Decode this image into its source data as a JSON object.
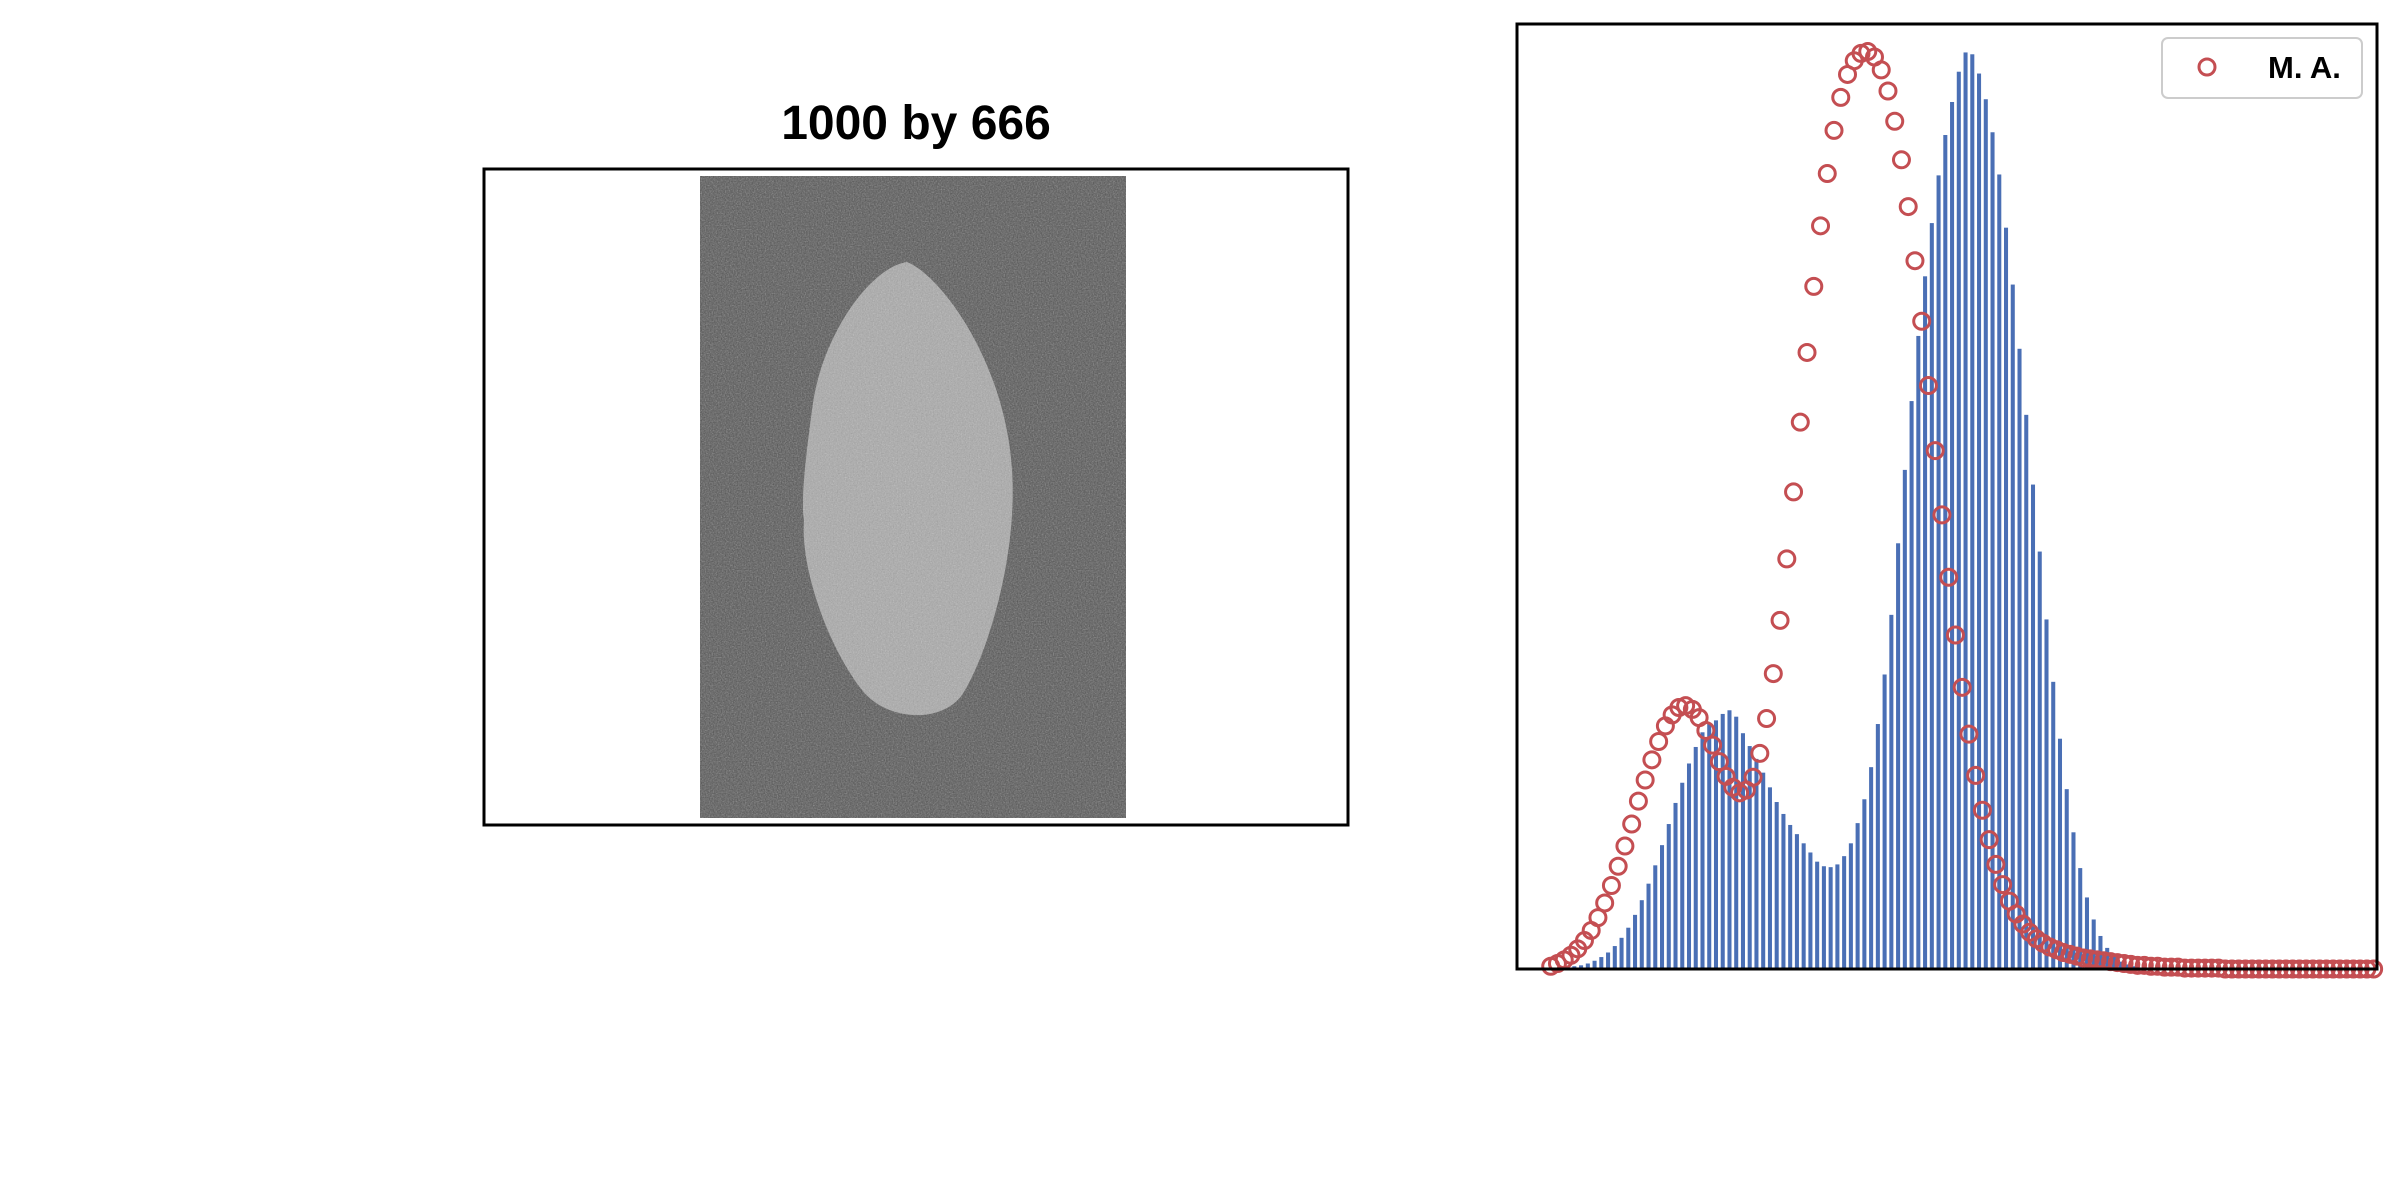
{
  "image_panel": {
    "title": "1000 by 666",
    "colors": {
      "background": "#525252",
      "object": "#a9a9a9",
      "frame": "#000000"
    }
  },
  "chart_data": {
    "type": "bar",
    "title": "",
    "xlabel": "",
    "ylabel": "",
    "xlim": [
      0,
      255
    ],
    "ylim": [
      0,
      1.03
    ],
    "grid": false,
    "axis_ticks": "none",
    "legend": {
      "position": "top-right",
      "entries": [
        "M. A."
      ]
    },
    "bar_color": "#4a6fb5",
    "bar_width": 0.6,
    "series": [
      {
        "type": "bar",
        "x": [
          5,
          7,
          9,
          11,
          13,
          15,
          17,
          19,
          21,
          23,
          25,
          27,
          29,
          31,
          33,
          35,
          37,
          39,
          41,
          43,
          45,
          47,
          49,
          51,
          53,
          55,
          57,
          59,
          61,
          63,
          65,
          67,
          69,
          71,
          73,
          75,
          77,
          79,
          81,
          83,
          85,
          87,
          89,
          91,
          93,
          95,
          97,
          99,
          101,
          103,
          105,
          107,
          109,
          111,
          113,
          115,
          117,
          119,
          121,
          123,
          125,
          127,
          129,
          131,
          133,
          135,
          137,
          139,
          141,
          143,
          145,
          147,
          149,
          151,
          153,
          155,
          157,
          159,
          161,
          163,
          165,
          167,
          169,
          171,
          173,
          175,
          177,
          179,
          181,
          183,
          185,
          187,
          189,
          191,
          193,
          195,
          197,
          199,
          201,
          203,
          205,
          207,
          209,
          211,
          213,
          215,
          217,
          219,
          221,
          223,
          225,
          227,
          229,
          231,
          233,
          235,
          237,
          239,
          241,
          243,
          245,
          247,
          249,
          251,
          253
        ],
        "values": [
          0.0,
          0.0,
          0.0,
          0.001,
          0.001,
          0.002,
          0.003,
          0.004,
          0.006,
          0.009,
          0.013,
          0.018,
          0.025,
          0.034,
          0.045,
          0.059,
          0.075,
          0.093,
          0.113,
          0.135,
          0.158,
          0.181,
          0.203,
          0.224,
          0.242,
          0.258,
          0.267,
          0.271,
          0.278,
          0.282,
          0.275,
          0.257,
          0.243,
          0.229,
          0.214,
          0.198,
          0.182,
          0.169,
          0.157,
          0.147,
          0.137,
          0.127,
          0.117,
          0.112,
          0.111,
          0.114,
          0.123,
          0.137,
          0.159,
          0.185,
          0.22,
          0.267,
          0.321,
          0.386,
          0.464,
          0.544,
          0.619,
          0.69,
          0.755,
          0.813,
          0.865,
          0.909,
          0.945,
          0.978,
          0.999,
          0.997,
          0.976,
          0.948,
          0.912,
          0.866,
          0.808,
          0.746,
          0.676,
          0.604,
          0.528,
          0.455,
          0.381,
          0.313,
          0.251,
          0.196,
          0.149,
          0.11,
          0.078,
          0.054,
          0.036,
          0.023,
          0.014,
          0.008,
          0.005,
          0.003,
          0.001,
          0.001,
          0.0,
          0.0,
          0.0,
          0.0,
          0.0,
          0.0,
          0.0,
          0.0,
          0.0,
          0.0,
          0.0,
          0.0,
          0.0,
          0.0,
          0.0,
          0.0,
          0.0,
          0.0,
          0.0,
          0.0,
          0.0,
          0.0,
          0.0,
          0.0,
          0.0,
          0.0,
          0.0,
          0.0,
          0.0,
          0.0,
          0.0,
          0.0,
          0.0
        ]
      },
      {
        "type": "scatter",
        "name": "M. A.",
        "marker": "open-circle",
        "color": "#c44e52",
        "x": [
          10,
          12,
          14,
          16,
          18,
          20,
          22,
          24,
          26,
          28,
          30,
          32,
          34,
          36,
          38,
          40,
          42,
          44,
          46,
          48,
          50,
          52,
          54,
          56,
          58,
          60,
          62,
          64,
          66,
          68,
          70,
          72,
          74,
          76,
          78,
          80,
          82,
          84,
          86,
          88,
          90,
          92,
          94,
          96,
          98,
          100,
          102,
          104,
          106,
          108,
          110,
          112,
          114,
          116,
          118,
          120,
          122,
          124,
          126,
          128,
          130,
          132,
          134,
          136,
          138,
          140,
          142,
          144,
          146,
          148,
          150,
          152,
          154,
          156,
          158,
          160,
          162,
          164,
          166,
          168,
          170,
          172,
          174,
          176,
          178,
          180,
          182,
          184,
          186,
          188,
          190,
          192,
          194,
          196,
          198,
          200,
          202,
          204,
          206,
          208,
          210,
          212,
          214,
          216,
          218,
          220,
          222,
          224,
          226,
          228,
          230,
          232,
          234,
          236,
          238,
          240,
          242,
          244,
          246,
          248,
          250,
          252,
          254
        ],
        "values": [
          0.003,
          0.006,
          0.01,
          0.015,
          0.022,
          0.031,
          0.042,
          0.056,
          0.072,
          0.091,
          0.112,
          0.134,
          0.158,
          0.183,
          0.206,
          0.228,
          0.248,
          0.265,
          0.277,
          0.285,
          0.287,
          0.283,
          0.274,
          0.26,
          0.244,
          0.226,
          0.21,
          0.198,
          0.192,
          0.195,
          0.209,
          0.235,
          0.273,
          0.322,
          0.38,
          0.447,
          0.52,
          0.596,
          0.672,
          0.744,
          0.81,
          0.867,
          0.914,
          0.95,
          0.975,
          0.99,
          0.998,
          1.0,
          0.994,
          0.98,
          0.957,
          0.924,
          0.882,
          0.831,
          0.772,
          0.706,
          0.636,
          0.565,
          0.495,
          0.427,
          0.364,
          0.307,
          0.256,
          0.211,
          0.173,
          0.141,
          0.114,
          0.092,
          0.074,
          0.06,
          0.049,
          0.04,
          0.033,
          0.028,
          0.024,
          0.021,
          0.018,
          0.016,
          0.014,
          0.012,
          0.011,
          0.01,
          0.009,
          0.008,
          0.007,
          0.006,
          0.005,
          0.004,
          0.004,
          0.003,
          0.003,
          0.002,
          0.002,
          0.002,
          0.001,
          0.001,
          0.001,
          0.001,
          0.001,
          0.001,
          0.0,
          0.0,
          0.0,
          0.0,
          0.0,
          0.0,
          0.0,
          0.0,
          0.0,
          0.0,
          0.0,
          0.0,
          0.0,
          0.0,
          0.0,
          0.0,
          0.0,
          0.0,
          0.0,
          0.0,
          0.0,
          0.0,
          0.0
        ]
      }
    ]
  }
}
